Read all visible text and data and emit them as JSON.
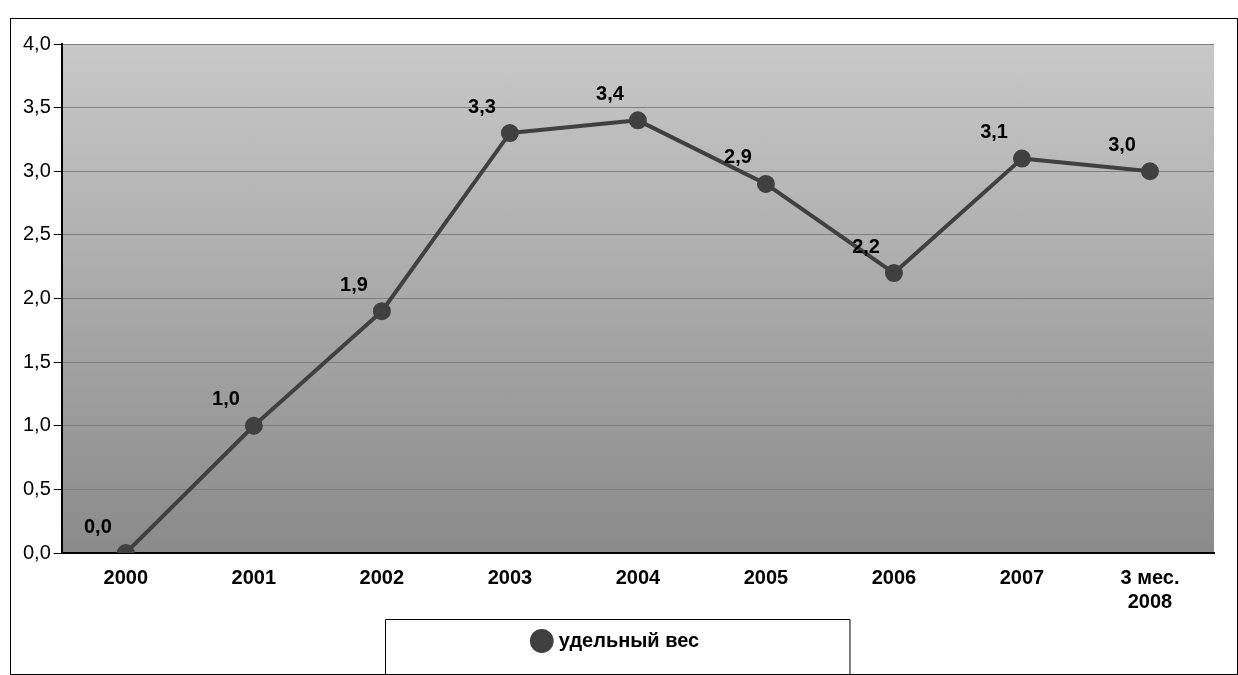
{
  "chart_data": {
    "type": "line",
    "categories": [
      "2000",
      "2001",
      "2002",
      "2003",
      "2004",
      "2005",
      "2006",
      "2007",
      "3 мес.\n2008"
    ],
    "series": [
      {
        "name": "удельный вес",
        "color": "#404040",
        "values": [
          0.0,
          1.0,
          1.9,
          3.3,
          3.4,
          2.9,
          2.2,
          3.1,
          3.0
        ],
        "value_labels": [
          "0,0",
          "1,0",
          "1,9",
          "3,3",
          "3,4",
          "2,9",
          "2,2",
          "3,1",
          "3,0"
        ]
      }
    ],
    "ylim": [
      0,
      4
    ],
    "yticks": [
      {
        "value": 0,
        "label": "0,0"
      },
      {
        "value": 0.5,
        "label": "0,5"
      },
      {
        "value": 1,
        "label": "1,0"
      },
      {
        "value": 1.5,
        "label": "1,5"
      },
      {
        "value": 2,
        "label": "2,0"
      },
      {
        "value": 2.5,
        "label": "2,5"
      },
      {
        "value": 3,
        "label": "3,0"
      },
      {
        "value": 3.5,
        "label": "3,5"
      },
      {
        "value": 4,
        "label": "4,0"
      }
    ],
    "grid": "y",
    "legend": "bottom",
    "marker": "circle",
    "line_style": "solid"
  }
}
